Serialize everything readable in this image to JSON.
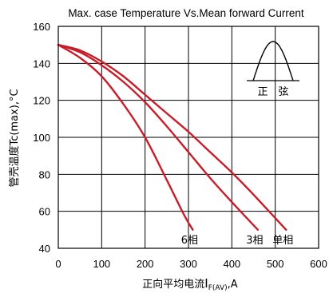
{
  "chart_data": {
    "type": "line",
    "title": "Max. case Temperature Vs.Mean forward Current",
    "xlabel_prefix": "正向平均电流",
    "xlabel_symbol": "I",
    "xlabel_subscript": "F(AV)",
    "xlabel_suffix": ",A",
    "ylabel": "管壳温度Tc(max),°C",
    "xlim": [
      0,
      600
    ],
    "ylim": [
      40,
      160
    ],
    "xticks": [
      0,
      100,
      200,
      300,
      400,
      500,
      600
    ],
    "yticks": [
      40,
      60,
      80,
      100,
      120,
      140,
      160
    ],
    "grid": true,
    "line_color": "#c81e2a",
    "series": [
      {
        "name": "6相",
        "x": [
          0,
          50,
          100,
          150,
          200,
          250,
          290,
          310
        ],
        "y": [
          150,
          143,
          133,
          118,
          100,
          77,
          58,
          50
        ]
      },
      {
        "name": "3相",
        "x": [
          0,
          50,
          100,
          150,
          200,
          250,
          300,
          350,
          400,
          460
        ],
        "y": [
          150,
          146,
          139,
          130,
          119,
          106,
          92,
          78,
          65,
          50
        ]
      },
      {
        "name": "单相",
        "x": [
          0,
          50,
          100,
          150,
          200,
          250,
          300,
          350,
          400,
          450,
          525
        ],
        "y": [
          150,
          147,
          141,
          133,
          123,
          113,
          103,
          92,
          81,
          69,
          50
        ]
      }
    ],
    "inset": {
      "label": "正　弦",
      "icon": "sine-half-wave-icon"
    }
  }
}
